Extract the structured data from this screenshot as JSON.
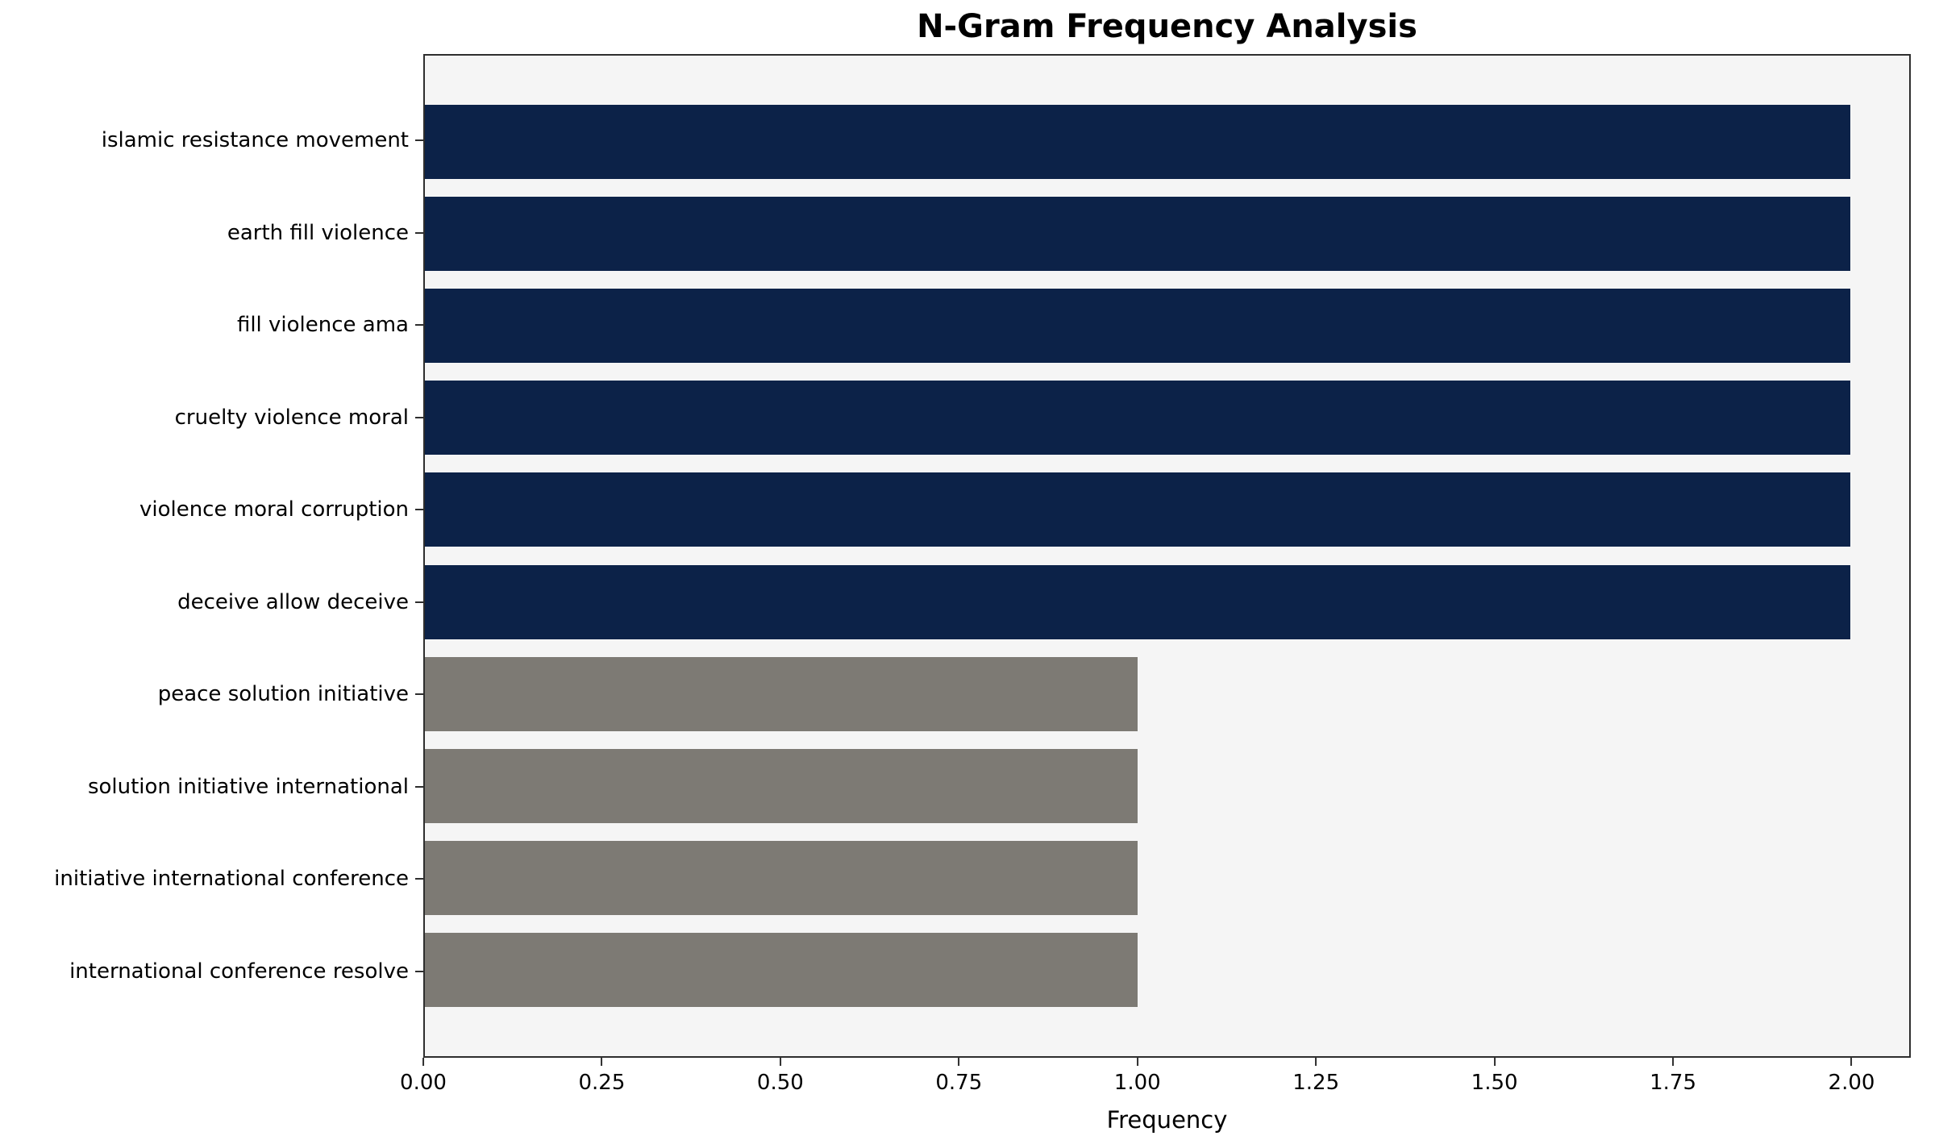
{
  "chart_data": {
    "type": "bar",
    "orientation": "horizontal",
    "title": "N-Gram Frequency Analysis",
    "xlabel": "Frequency",
    "ylabel": "",
    "categories": [
      "islamic resistance movement",
      "earth fill violence",
      "fill violence ama",
      "cruelty violence moral",
      "violence moral corruption",
      "deceive allow deceive",
      "peace solution initiative",
      "solution initiative international",
      "initiative international conference",
      "international conference resolve"
    ],
    "values": [
      2,
      2,
      2,
      2,
      2,
      2,
      1,
      1,
      1,
      1
    ],
    "bar_colors": [
      "#0c2248",
      "#0c2248",
      "#0c2248",
      "#0c2248",
      "#0c2248",
      "#0c2248",
      "#7d7a74",
      "#7d7a74",
      "#7d7a74",
      "#7d7a74"
    ],
    "xlim": [
      0,
      2.083
    ],
    "xticks": [
      "0.00",
      "0.25",
      "0.50",
      "0.75",
      "1.00",
      "1.25",
      "1.50",
      "1.75",
      "2.00"
    ],
    "grid": false,
    "legend": "none",
    "plot_background": "#f5f5f5",
    "colors": {
      "high_frequency_bar": "#0c2248",
      "low_frequency_bar": "#7d7a74",
      "axis": "#2e2e2e"
    }
  }
}
